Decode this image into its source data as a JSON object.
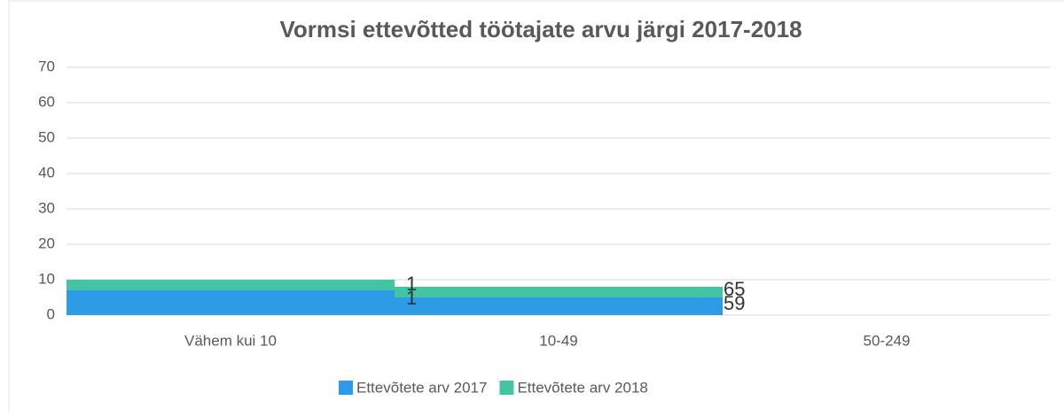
{
  "chart_data": {
    "type": "bar",
    "stacked": true,
    "title": "Vormsi ettevõtted töötajate arvu järgi 2017-2018",
    "categories": [
      "Vähem kui 10",
      "10-49",
      "50-249"
    ],
    "series": [
      {
        "name": "Ettevõtete arv 2017",
        "color": "#2e9be6",
        "values": [
          7,
          5,
          null
        ]
      },
      {
        "name": "Ettevõtete arv 2018",
        "color": "#45c4a4",
        "values": [
          3,
          3,
          null
        ]
      }
    ],
    "annotations": [
      "1",
      "1",
      "65",
      "59"
    ],
    "ylim": [
      0,
      70
    ],
    "yticks": [
      0,
      10,
      20,
      30,
      40,
      50,
      60,
      70
    ],
    "grid": true,
    "legend": "bottom"
  }
}
